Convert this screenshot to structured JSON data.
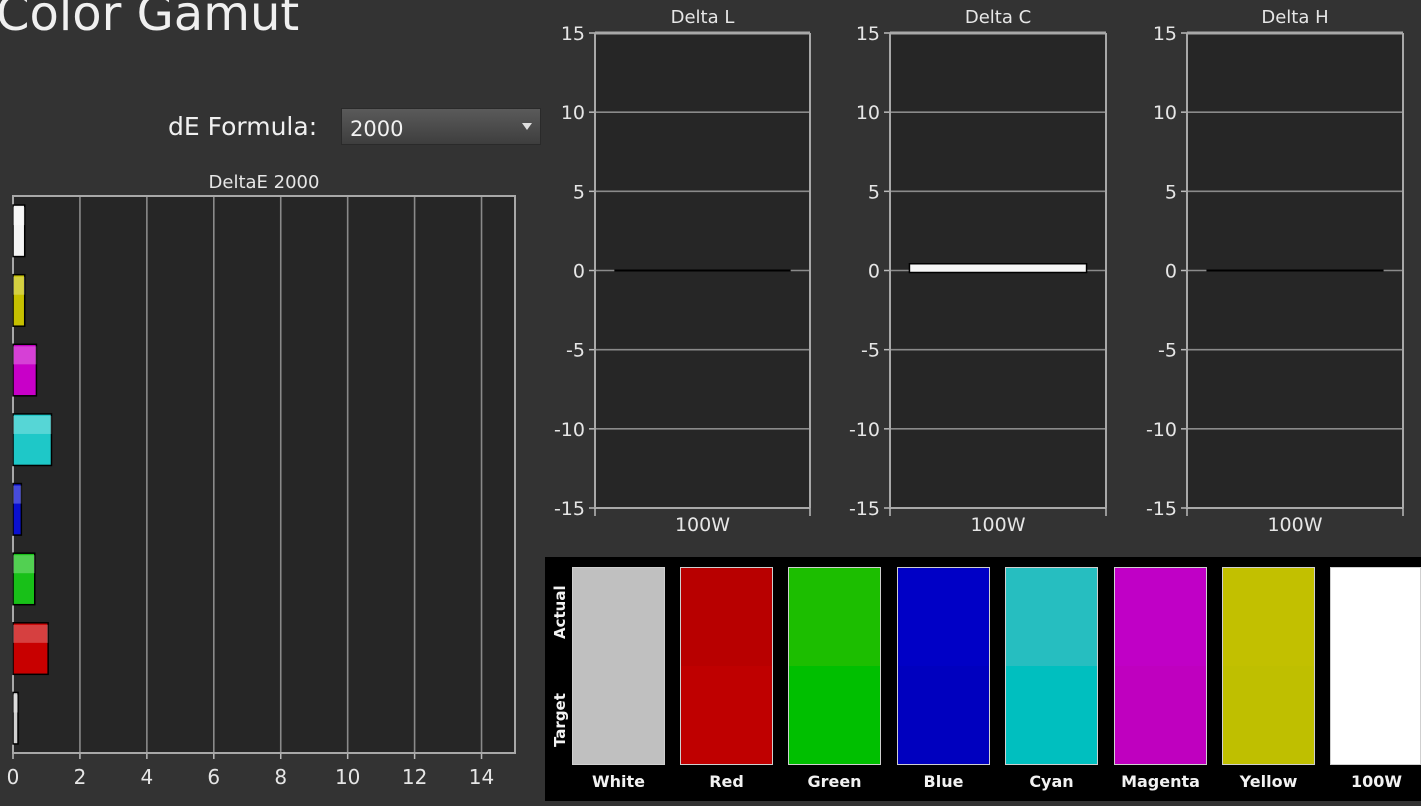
{
  "header": {
    "title": "Color Gamut"
  },
  "formula": {
    "label": "dE Formula:",
    "selected": "2000"
  },
  "colors": {
    "white": "#f4f4f4",
    "yellow": "#c6c000",
    "magenta": "#c800c8",
    "cyan": "#1ec8c8",
    "blue": "#0a10d0",
    "green": "#18c018",
    "red": "#c80000",
    "gray": "#d0d0d0"
  },
  "chart_data": [
    {
      "type": "bar",
      "orientation": "horizontal",
      "title": "DeltaE 2000",
      "categories": [
        "100W",
        "Yellow",
        "Magenta",
        "Cyan",
        "Blue",
        "Green",
        "Red",
        "White"
      ],
      "values": [
        0.35,
        0.35,
        0.7,
        1.15,
        0.25,
        0.65,
        1.05,
        0.15
      ],
      "bar_colors": [
        "#f4f4f4",
        "#c6c000",
        "#c800c8",
        "#1ec8c8",
        "#0a10d0",
        "#18c018",
        "#c80000",
        "#d0d0d0"
      ],
      "xlim": [
        0,
        15
      ],
      "xticks": [
        "0",
        "2",
        "4",
        "6",
        "8",
        "10",
        "12",
        "14"
      ],
      "grid": true
    },
    {
      "type": "bar",
      "title": "Delta L",
      "categories": [
        "100W"
      ],
      "values": [
        0.0
      ],
      "ylim": [
        -15,
        15
      ],
      "yticks": [
        "15",
        "10",
        "5",
        "0",
        "-5",
        "-10",
        "-15"
      ],
      "grid": true
    },
    {
      "type": "bar",
      "title": "Delta C",
      "categories": [
        "100W"
      ],
      "values": [
        0.3
      ],
      "ylim": [
        -15,
        15
      ],
      "yticks": [
        "15",
        "10",
        "5",
        "0",
        "-5",
        "-10",
        "-15"
      ],
      "grid": true
    },
    {
      "type": "bar",
      "title": "Delta H",
      "categories": [
        "100W"
      ],
      "values": [
        0.0
      ],
      "ylim": [
        -15,
        15
      ],
      "yticks": [
        "15",
        "10",
        "5",
        "0",
        "-5",
        "-10",
        "-15"
      ],
      "grid": true
    }
  ],
  "swatches": {
    "actual_label": "Actual",
    "target_label": "Target",
    "items": [
      {
        "name": "White",
        "actual": "#c0c0c0",
        "target": "#c0c0c0"
      },
      {
        "name": "Red",
        "actual": "#b80000",
        "target": "#bf0000"
      },
      {
        "name": "Green",
        "actual": "#1cbe00",
        "target": "#00bf00"
      },
      {
        "name": "Blue",
        "actual": "#0000c6",
        "target": "#0000bf"
      },
      {
        "name": "Cyan",
        "actual": "#26bec0",
        "target": "#00bfbf"
      },
      {
        "name": "Magenta",
        "actual": "#c000c6",
        "target": "#bf00bf"
      },
      {
        "name": "Yellow",
        "actual": "#c2c000",
        "target": "#bfbf00"
      },
      {
        "name": "100W",
        "actual": "#ffffff",
        "target": "#ffffff"
      }
    ]
  }
}
